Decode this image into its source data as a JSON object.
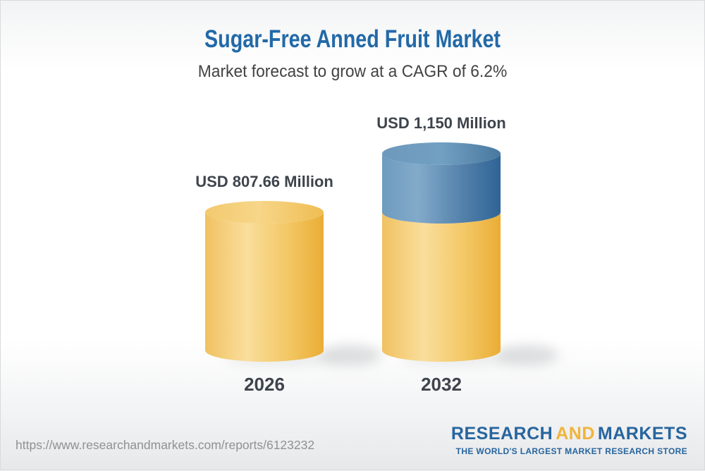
{
  "chart_data": {
    "type": "bar",
    "subtype": "3d-cylinder",
    "title": "Sugar-Free Anned Fruit Market",
    "subtitle": "Market forecast to grow at a CAGR of 6.2%",
    "cagr_percent": 6.2,
    "unit": "USD Million",
    "categories": [
      "2026",
      "2032"
    ],
    "values": [
      807.66,
      1150
    ],
    "value_labels": [
      "USD 807.66 Million",
      "USD 1,150 Million"
    ],
    "base_value": 807.66,
    "segments_note": "2026 bar is all gold; 2032 bar is gold up to 807.66 then blue up to 1150",
    "axes_visible": false,
    "gridlines": false,
    "legend": "none",
    "gradients": {
      "gold_body": [
        [
          0,
          "#F0C161"
        ],
        [
          0.35,
          "#FADE9C"
        ],
        [
          0.7,
          "#F3C765"
        ],
        [
          1,
          "#EAAD35"
        ]
      ],
      "gold_top": [
        [
          0,
          "#F2C96E"
        ],
        [
          0.45,
          "#F7D689"
        ],
        [
          1,
          "#EFBD52"
        ]
      ],
      "blue_body": [
        [
          0,
          "#6E9BBE"
        ],
        [
          0.3,
          "#82AACA"
        ],
        [
          0.7,
          "#517FA9"
        ],
        [
          1,
          "#2F6496"
        ]
      ],
      "blue_top": [
        [
          0,
          "#6E99BC"
        ],
        [
          0.5,
          "#71A0C2"
        ],
        [
          1,
          "#49789F"
        ]
      ]
    }
  },
  "footer": {
    "url": "https://www.researchandmarkets.com/reports/6123232",
    "logo": {
      "word1": "RESEARCH",
      "word2": "AND",
      "word3": "MARKETS",
      "tagline": "THE WORLD'S LARGEST MARKET RESEARCH STORE"
    }
  },
  "colors": {
    "title": "#2269A8",
    "subtitle": "#424242",
    "value_label": "#3E444C",
    "category_label": "#3E444C",
    "url": "#8F9193",
    "logo_blue": "#27659E",
    "logo_gold": "#F0B43C",
    "shadow": "#C9CACC",
    "background_top": "#F2F3F4",
    "background_bottom": "#E7E8EA",
    "border": "#D9DADB"
  }
}
